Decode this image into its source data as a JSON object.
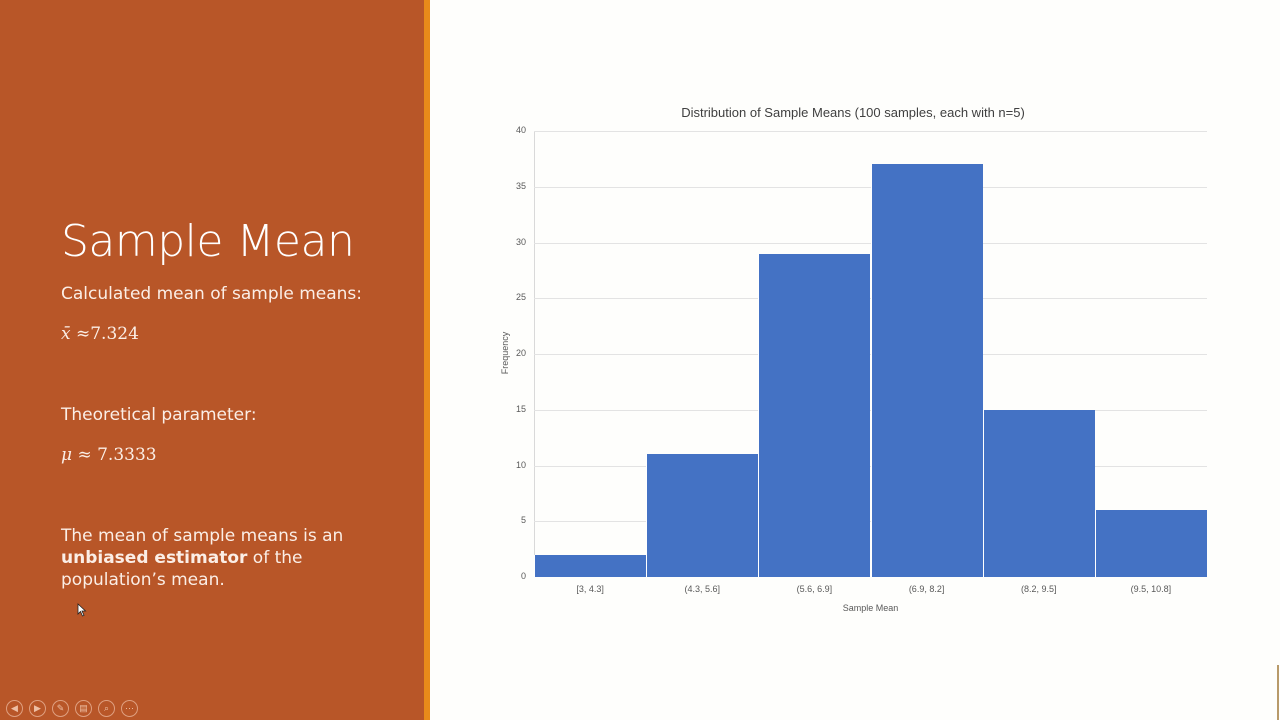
{
  "slide": {
    "title": "Sample Mean",
    "calc_label": "Calculated mean of sample means:",
    "calc_value_symbol": "x̄",
    "calc_value": "≈7.324",
    "theory_label": "Theoretical parameter:",
    "theory_value_symbol": "μ",
    "theory_value": "≈ 7.3333",
    "desc_pre": "The mean of sample means is an ",
    "desc_bold": "unbiased estimator",
    "desc_post": " of the population’s mean."
  },
  "toolbar": {
    "prev": "◀",
    "next": "▶",
    "pen": "✎",
    "slides": "▤",
    "zoom": "⌕",
    "more": "⋯"
  },
  "colors": {
    "panel": "#b85628",
    "accent": "#e88a1a",
    "bar": "#4472c4"
  },
  "chart_data": {
    "type": "bar",
    "title": "Distribution of Sample Means (100 samples, each with n=5)",
    "xlabel": "Sample Mean",
    "ylabel": "Frequency",
    "categories": [
      "[3, 4.3]",
      "(4.3, 5.6]",
      "(5.6, 6.9]",
      "(6.9, 8.2]",
      "(8.2, 9.5]",
      "(9.5, 10.8]"
    ],
    "values": [
      2,
      11,
      29,
      37,
      15,
      6
    ],
    "ylim": [
      0,
      40
    ],
    "yticks": [
      0,
      5,
      10,
      15,
      20,
      25,
      30,
      35,
      40
    ],
    "grid": true,
    "legend": "none"
  }
}
